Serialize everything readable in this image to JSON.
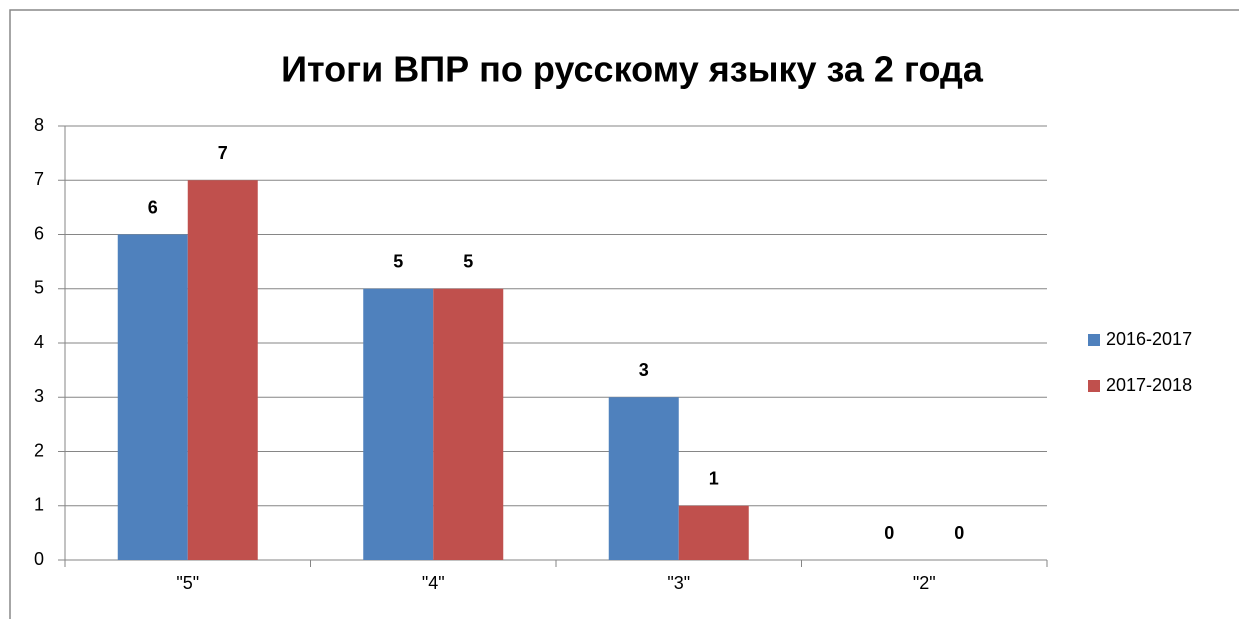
{
  "chart_data": {
    "type": "bar",
    "title": "Итоги ВПР по русскому языку за 2 года",
    "categories": [
      "\"5\"",
      "\"4\"",
      "\"3\"",
      "\"2\""
    ],
    "series": [
      {
        "name": "2016-2017",
        "color": "#4f81bd",
        "values": [
          6,
          5,
          3,
          0
        ]
      },
      {
        "name": "2017-2018",
        "color": "#c0504d",
        "values": [
          7,
          5,
          1,
          0
        ]
      }
    ],
    "ylim": [
      0,
      8
    ],
    "yticks": [
      0,
      1,
      2,
      3,
      4,
      5,
      6,
      7,
      8
    ],
    "grid": true,
    "legend": "right",
    "data_labels": true
  }
}
